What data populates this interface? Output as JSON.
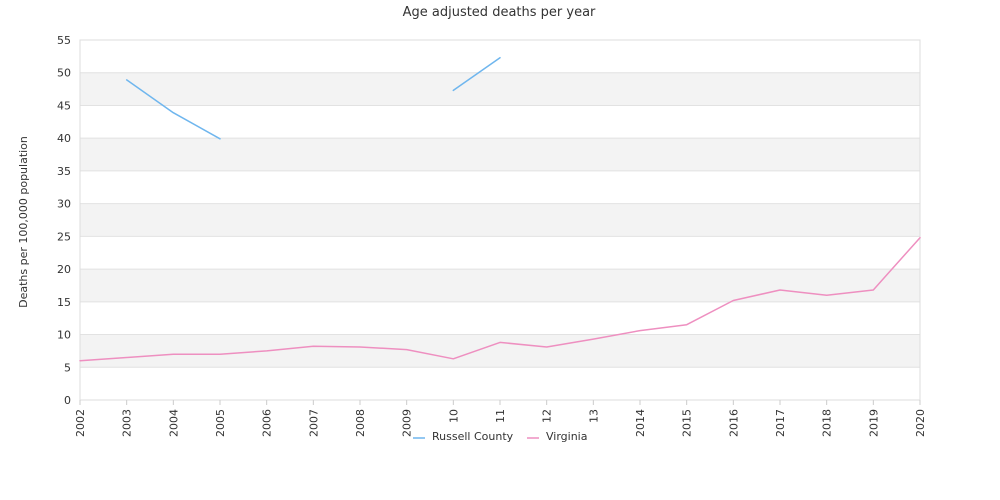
{
  "chart_data": {
    "type": "line",
    "title": "Age adjusted deaths per year",
    "ylabel": "Deaths per 100,000 population",
    "xlabel": "",
    "x": [
      "2002",
      "2003",
      "2004",
      "2005",
      "2006",
      "2007",
      "2008",
      "2009",
      "2010",
      "2011",
      "2012",
      "2013",
      "2014",
      "2015",
      "2016",
      "2017",
      "2018",
      "2019",
      "2020"
    ],
    "x_tick_labels": [
      "2002",
      "2003",
      "2004",
      "2005",
      "2006",
      "2007",
      "2008",
      "2009",
      "10",
      "11",
      "12",
      "13",
      "2014",
      "2015",
      "2016",
      "2017",
      "2018",
      "2019",
      "2020"
    ],
    "ylim": [
      0,
      55
    ],
    "yticks": [
      0,
      5,
      10,
      15,
      20,
      25,
      30,
      35,
      40,
      45,
      50,
      55
    ],
    "grid": "horizontal alternating bands",
    "legend_position": "bottom-center",
    "series": [
      {
        "name": "Russell County",
        "color": "#6fb6ee",
        "values": [
          null,
          48.9,
          43.9,
          39.9,
          null,
          null,
          null,
          null,
          47.3,
          52.3,
          null,
          null,
          null,
          null,
          null,
          null,
          null,
          null,
          null
        ]
      },
      {
        "name": "Virginia",
        "color": "#ee8fc0",
        "values": [
          6.0,
          6.5,
          7.0,
          7.0,
          7.5,
          8.2,
          8.1,
          7.7,
          6.3,
          8.8,
          8.1,
          9.3,
          10.6,
          11.5,
          15.2,
          16.8,
          16.0,
          16.8,
          24.8
        ]
      }
    ]
  }
}
